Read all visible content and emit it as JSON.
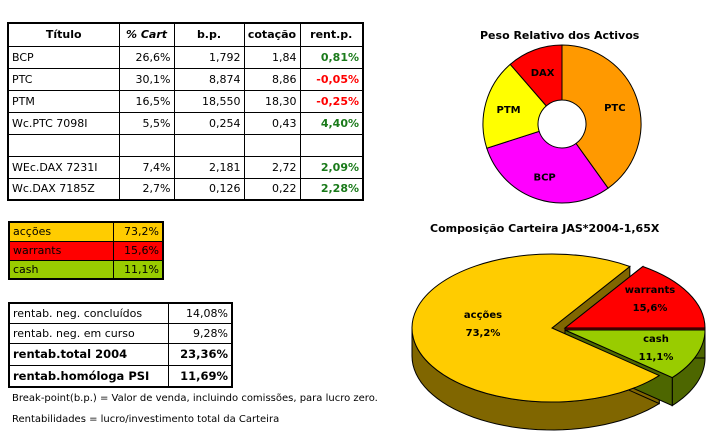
{
  "holdings": {
    "headers": [
      "Título",
      "% Cart",
      "b.p.",
      "cotação",
      "rent.p."
    ],
    "rows": [
      {
        "titulo": "BCP",
        "cart": "26,6%",
        "bp": "1,792",
        "cotacao": "1,84",
        "rent": "0,81%",
        "sign": "pos"
      },
      {
        "titulo": "PTC",
        "cart": "30,1%",
        "bp": "8,874",
        "cotacao": "8,86",
        "rent": "-0,05%",
        "sign": "neg"
      },
      {
        "titulo": "PTM",
        "cart": "16,5%",
        "bp": "18,550",
        "cotacao": "18,30",
        "rent": "-0,25%",
        "sign": "neg"
      },
      {
        "titulo": "Wc.PTC 7098I",
        "cart": "5,5%",
        "bp": "0,254",
        "cotacao": "0,43",
        "rent": "4,40%",
        "sign": "pos"
      },
      {
        "titulo": "",
        "cart": "",
        "bp": "",
        "cotacao": "",
        "rent": "",
        "sign": ""
      },
      {
        "titulo": "WEc.DAX 7231I",
        "cart": "7,4%",
        "bp": "2,181",
        "cotacao": "2,72",
        "rent": "2,09%",
        "sign": "pos"
      },
      {
        "titulo": "Wc.DAX 7185Z",
        "cart": "2,7%",
        "bp": "0,126",
        "cotacao": "0,22",
        "rent": "2,28%",
        "sign": "pos"
      }
    ]
  },
  "allocation": {
    "rows": [
      {
        "label": "acções",
        "value": "73,2%",
        "color": "#ffcc00",
        "text_color": "#000000"
      },
      {
        "label": "warrants",
        "value": "15,6%",
        "color": "#ff0000",
        "text_color": "#000000"
      },
      {
        "label": "cash",
        "value": "11,1%",
        "color": "#99cc00",
        "text_color": "#000000"
      }
    ]
  },
  "returns": {
    "rows": [
      {
        "label": "rentab. neg. concluídos",
        "value": "14,08%",
        "bold": false
      },
      {
        "label": "rentab. neg. em curso",
        "value": "9,28%",
        "bold": false
      },
      {
        "label": "rentab.total 2004",
        "value": "23,36%",
        "bold": true
      },
      {
        "label": "rentab.homóloga PSI",
        "value": "11,69%",
        "bold": true
      }
    ]
  },
  "notes": {
    "breakpoint": "Break-point(b.p.) = Valor de venda, incluindo comissões, para lucro zero.",
    "rentabilidades": "Rentabilidades = lucro/investimento total da Carteira"
  },
  "colors": {
    "positive": "#1a7a1a",
    "negative": "#ff0000"
  },
  "chart_data": [
    {
      "type": "pie",
      "variant": "doughnut",
      "title": "Peso Relativo dos Activos",
      "categories": [
        "PTC",
        "BCP",
        "PTM",
        "DAX"
      ],
      "values": [
        35.6,
        26.6,
        16.5,
        10.1
      ],
      "colors": [
        "#ff9900",
        "#ff00ff",
        "#ffff00",
        "#ff0000"
      ],
      "start_angle_deg": 0,
      "direction": "clockwise",
      "legend": "none",
      "data_labels": "category"
    },
    {
      "type": "pie",
      "variant": "3d-exploded",
      "title": "Composição Carteira JAS*2004-1,65X",
      "categories": [
        "acções",
        "warrants",
        "cash"
      ],
      "values": [
        73.2,
        15.6,
        11.1
      ],
      "value_labels": [
        "73,2%",
        "15,6%",
        "11,1%"
      ],
      "colors": [
        "#ffcc00",
        "#ff0000",
        "#99cc00"
      ],
      "side_colors": [
        "#806600",
        "#800000",
        "#4d6600"
      ],
      "exploded": [
        "warrants",
        "cash"
      ],
      "legend": "none",
      "data_labels": "category+percent"
    }
  ]
}
